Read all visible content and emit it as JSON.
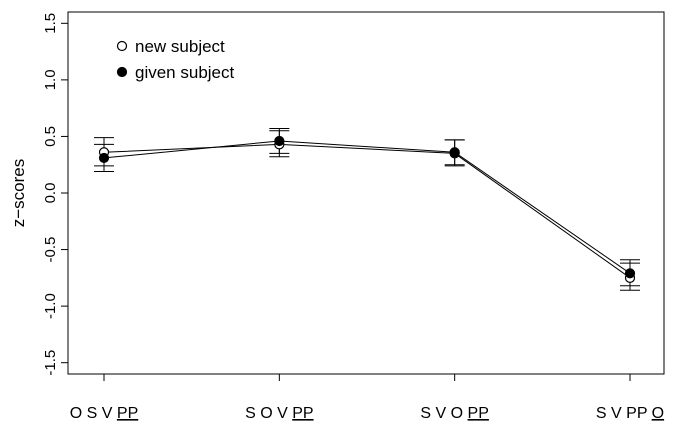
{
  "chart_data": {
    "type": "line",
    "title": "",
    "xlabel": "",
    "ylabel": "z−scores",
    "ylim": [
      -1.6,
      1.6
    ],
    "yticks": [
      "1.5",
      "1.0",
      "0.5",
      "0.0",
      "-0.5",
      "-1.0",
      "-1.5"
    ],
    "ytick_values": [
      1.5,
      1.0,
      0.5,
      0.0,
      -0.5,
      -1.0,
      -1.5
    ],
    "grid": false,
    "legend": "top-left",
    "categories": [
      {
        "parts": [
          "O S V ",
          "PP"
        ],
        "underline": [
          false,
          true
        ]
      },
      {
        "parts": [
          "S O V ",
          "PP"
        ],
        "underline": [
          false,
          true
        ]
      },
      {
        "parts": [
          "S V O ",
          "PP"
        ],
        "underline": [
          false,
          true
        ]
      },
      {
        "parts": [
          "S V PP ",
          "O"
        ],
        "underline": [
          false,
          true
        ]
      }
    ],
    "series": [
      {
        "name": "new subject",
        "marker": "open-circle",
        "values": [
          0.36,
          0.43,
          0.35,
          -0.75
        ],
        "error_low": [
          0.24,
          0.32,
          0.24,
          -0.86
        ],
        "error_high": [
          0.49,
          0.55,
          0.47,
          -0.62
        ]
      },
      {
        "name": "given subject",
        "marker": "filled-circle",
        "values": [
          0.31,
          0.46,
          0.36,
          -0.71
        ],
        "error_low": [
          0.19,
          0.35,
          0.25,
          -0.82
        ],
        "error_high": [
          0.43,
          0.57,
          0.47,
          -0.59
        ]
      }
    ],
    "colors": {
      "line": "#000000",
      "background": "#ffffff"
    }
  }
}
